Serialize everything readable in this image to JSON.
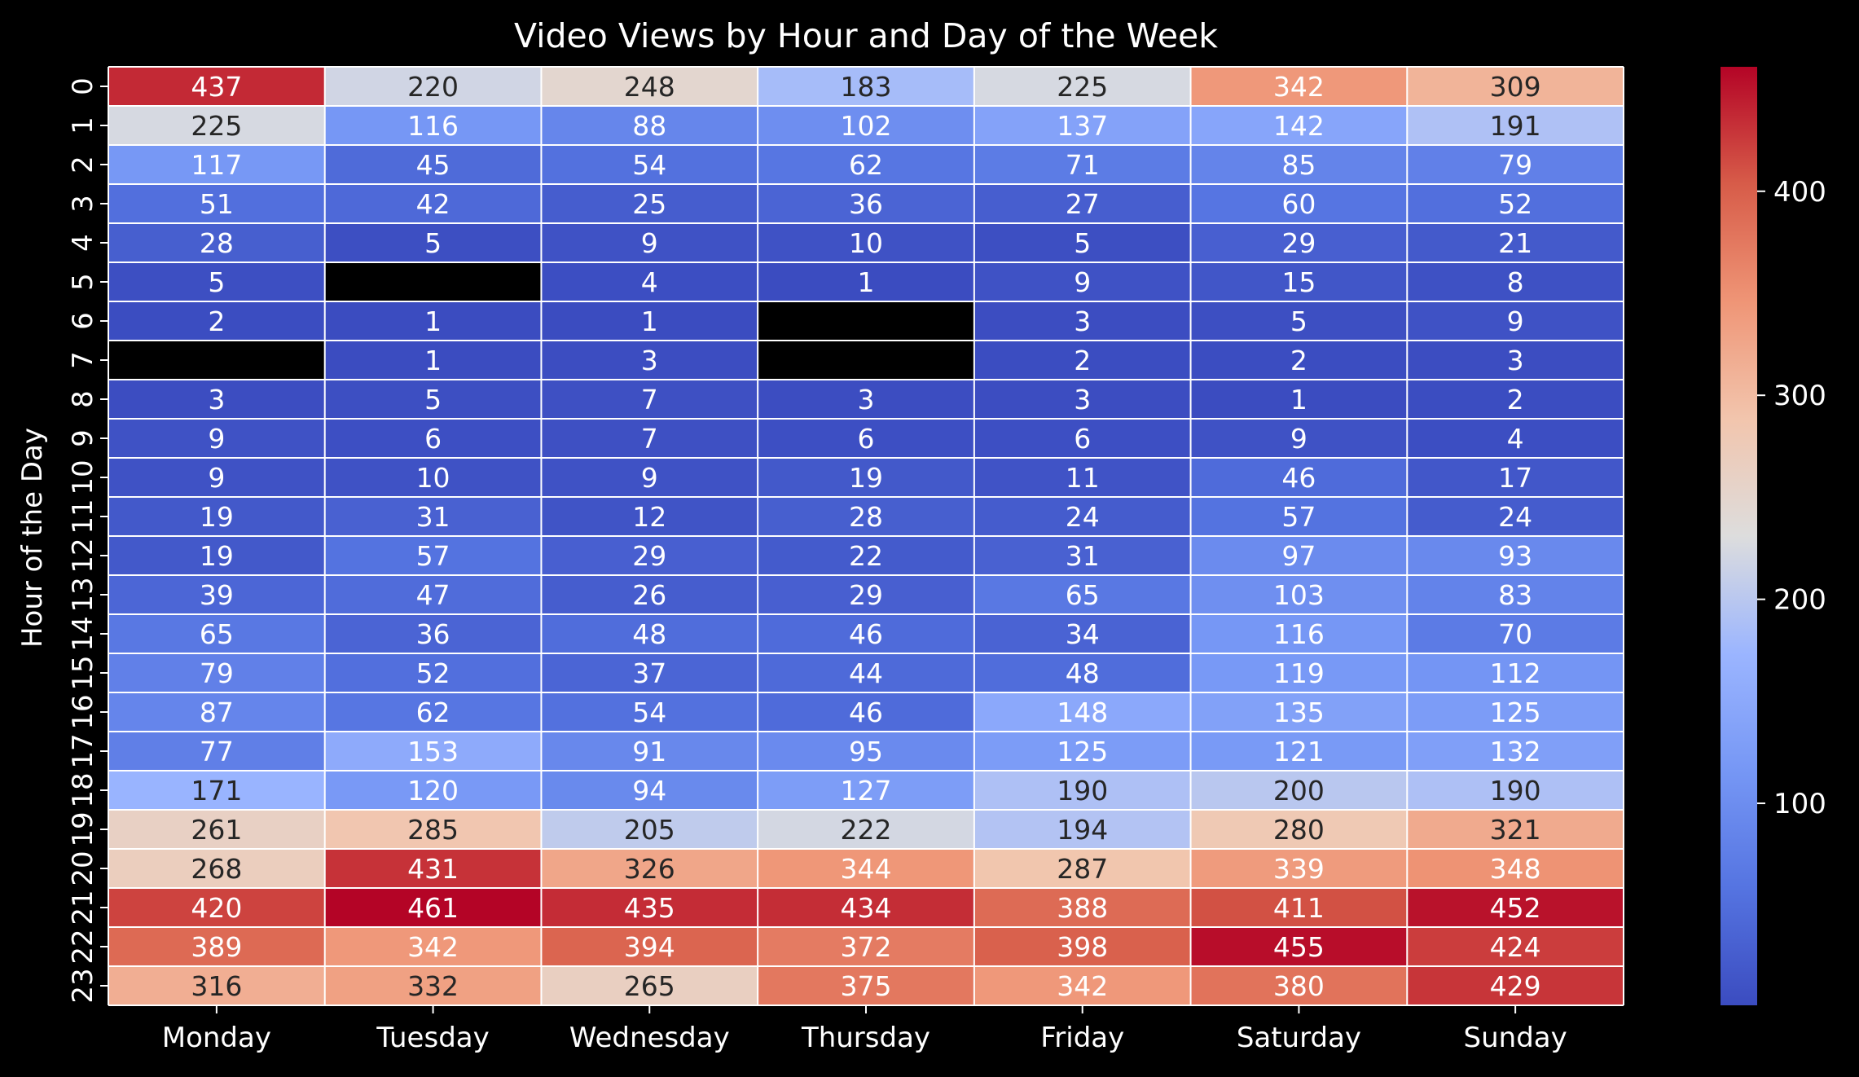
{
  "chart_data": {
    "type": "heatmap",
    "title": "Video Views by Hour and Day of the Week",
    "xlabel": "",
    "ylabel": "Hour of the Day",
    "x_categories": [
      "Monday",
      "Tuesday",
      "Wednesday",
      "Thursday",
      "Friday",
      "Saturday",
      "Sunday"
    ],
    "y_categories": [
      "0",
      "1",
      "2",
      "3",
      "4",
      "5",
      "6",
      "7",
      "8",
      "9",
      "10",
      "11",
      "12",
      "13",
      "14",
      "15",
      "16",
      "17",
      "18",
      "19",
      "20",
      "21",
      "22",
      "23"
    ],
    "values": [
      [
        437,
        220,
        248,
        183,
        225,
        342,
        309
      ],
      [
        225,
        116,
        88,
        102,
        137,
        142,
        191
      ],
      [
        117,
        45,
        54,
        62,
        71,
        85,
        79
      ],
      [
        51,
        42,
        25,
        36,
        27,
        60,
        52
      ],
      [
        28,
        5,
        9,
        10,
        5,
        29,
        21
      ],
      [
        5,
        null,
        4,
        1,
        9,
        15,
        8
      ],
      [
        2,
        1,
        1,
        null,
        3,
        5,
        9
      ],
      [
        null,
        1,
        3,
        null,
        2,
        2,
        3
      ],
      [
        3,
        5,
        7,
        3,
        3,
        1,
        2
      ],
      [
        9,
        6,
        7,
        6,
        6,
        9,
        4
      ],
      [
        9,
        10,
        9,
        19,
        11,
        46,
        17
      ],
      [
        19,
        31,
        12,
        28,
        24,
        57,
        24
      ],
      [
        19,
        57,
        29,
        22,
        31,
        97,
        93
      ],
      [
        39,
        47,
        26,
        29,
        65,
        103,
        83
      ],
      [
        65,
        36,
        48,
        46,
        34,
        116,
        70
      ],
      [
        79,
        52,
        37,
        44,
        48,
        119,
        112
      ],
      [
        87,
        62,
        54,
        46,
        148,
        135,
        125
      ],
      [
        77,
        153,
        91,
        95,
        125,
        121,
        132
      ],
      [
        171,
        120,
        94,
        127,
        190,
        200,
        190
      ],
      [
        261,
        285,
        205,
        222,
        194,
        280,
        321
      ],
      [
        268,
        431,
        326,
        344,
        287,
        339,
        348
      ],
      [
        420,
        461,
        435,
        434,
        388,
        411,
        452
      ],
      [
        389,
        342,
        394,
        372,
        398,
        455,
        424
      ],
      [
        316,
        332,
        265,
        375,
        342,
        380,
        429
      ]
    ],
    "colormap": "coolwarm",
    "vmin": 1,
    "vmax": 461,
    "colorbar_ticks": [
      100,
      200,
      300,
      400
    ],
    "missing_color": "#000000",
    "grid_line_color": "#ffffff",
    "background_color": "#000000",
    "text_color": "#ffffff"
  }
}
